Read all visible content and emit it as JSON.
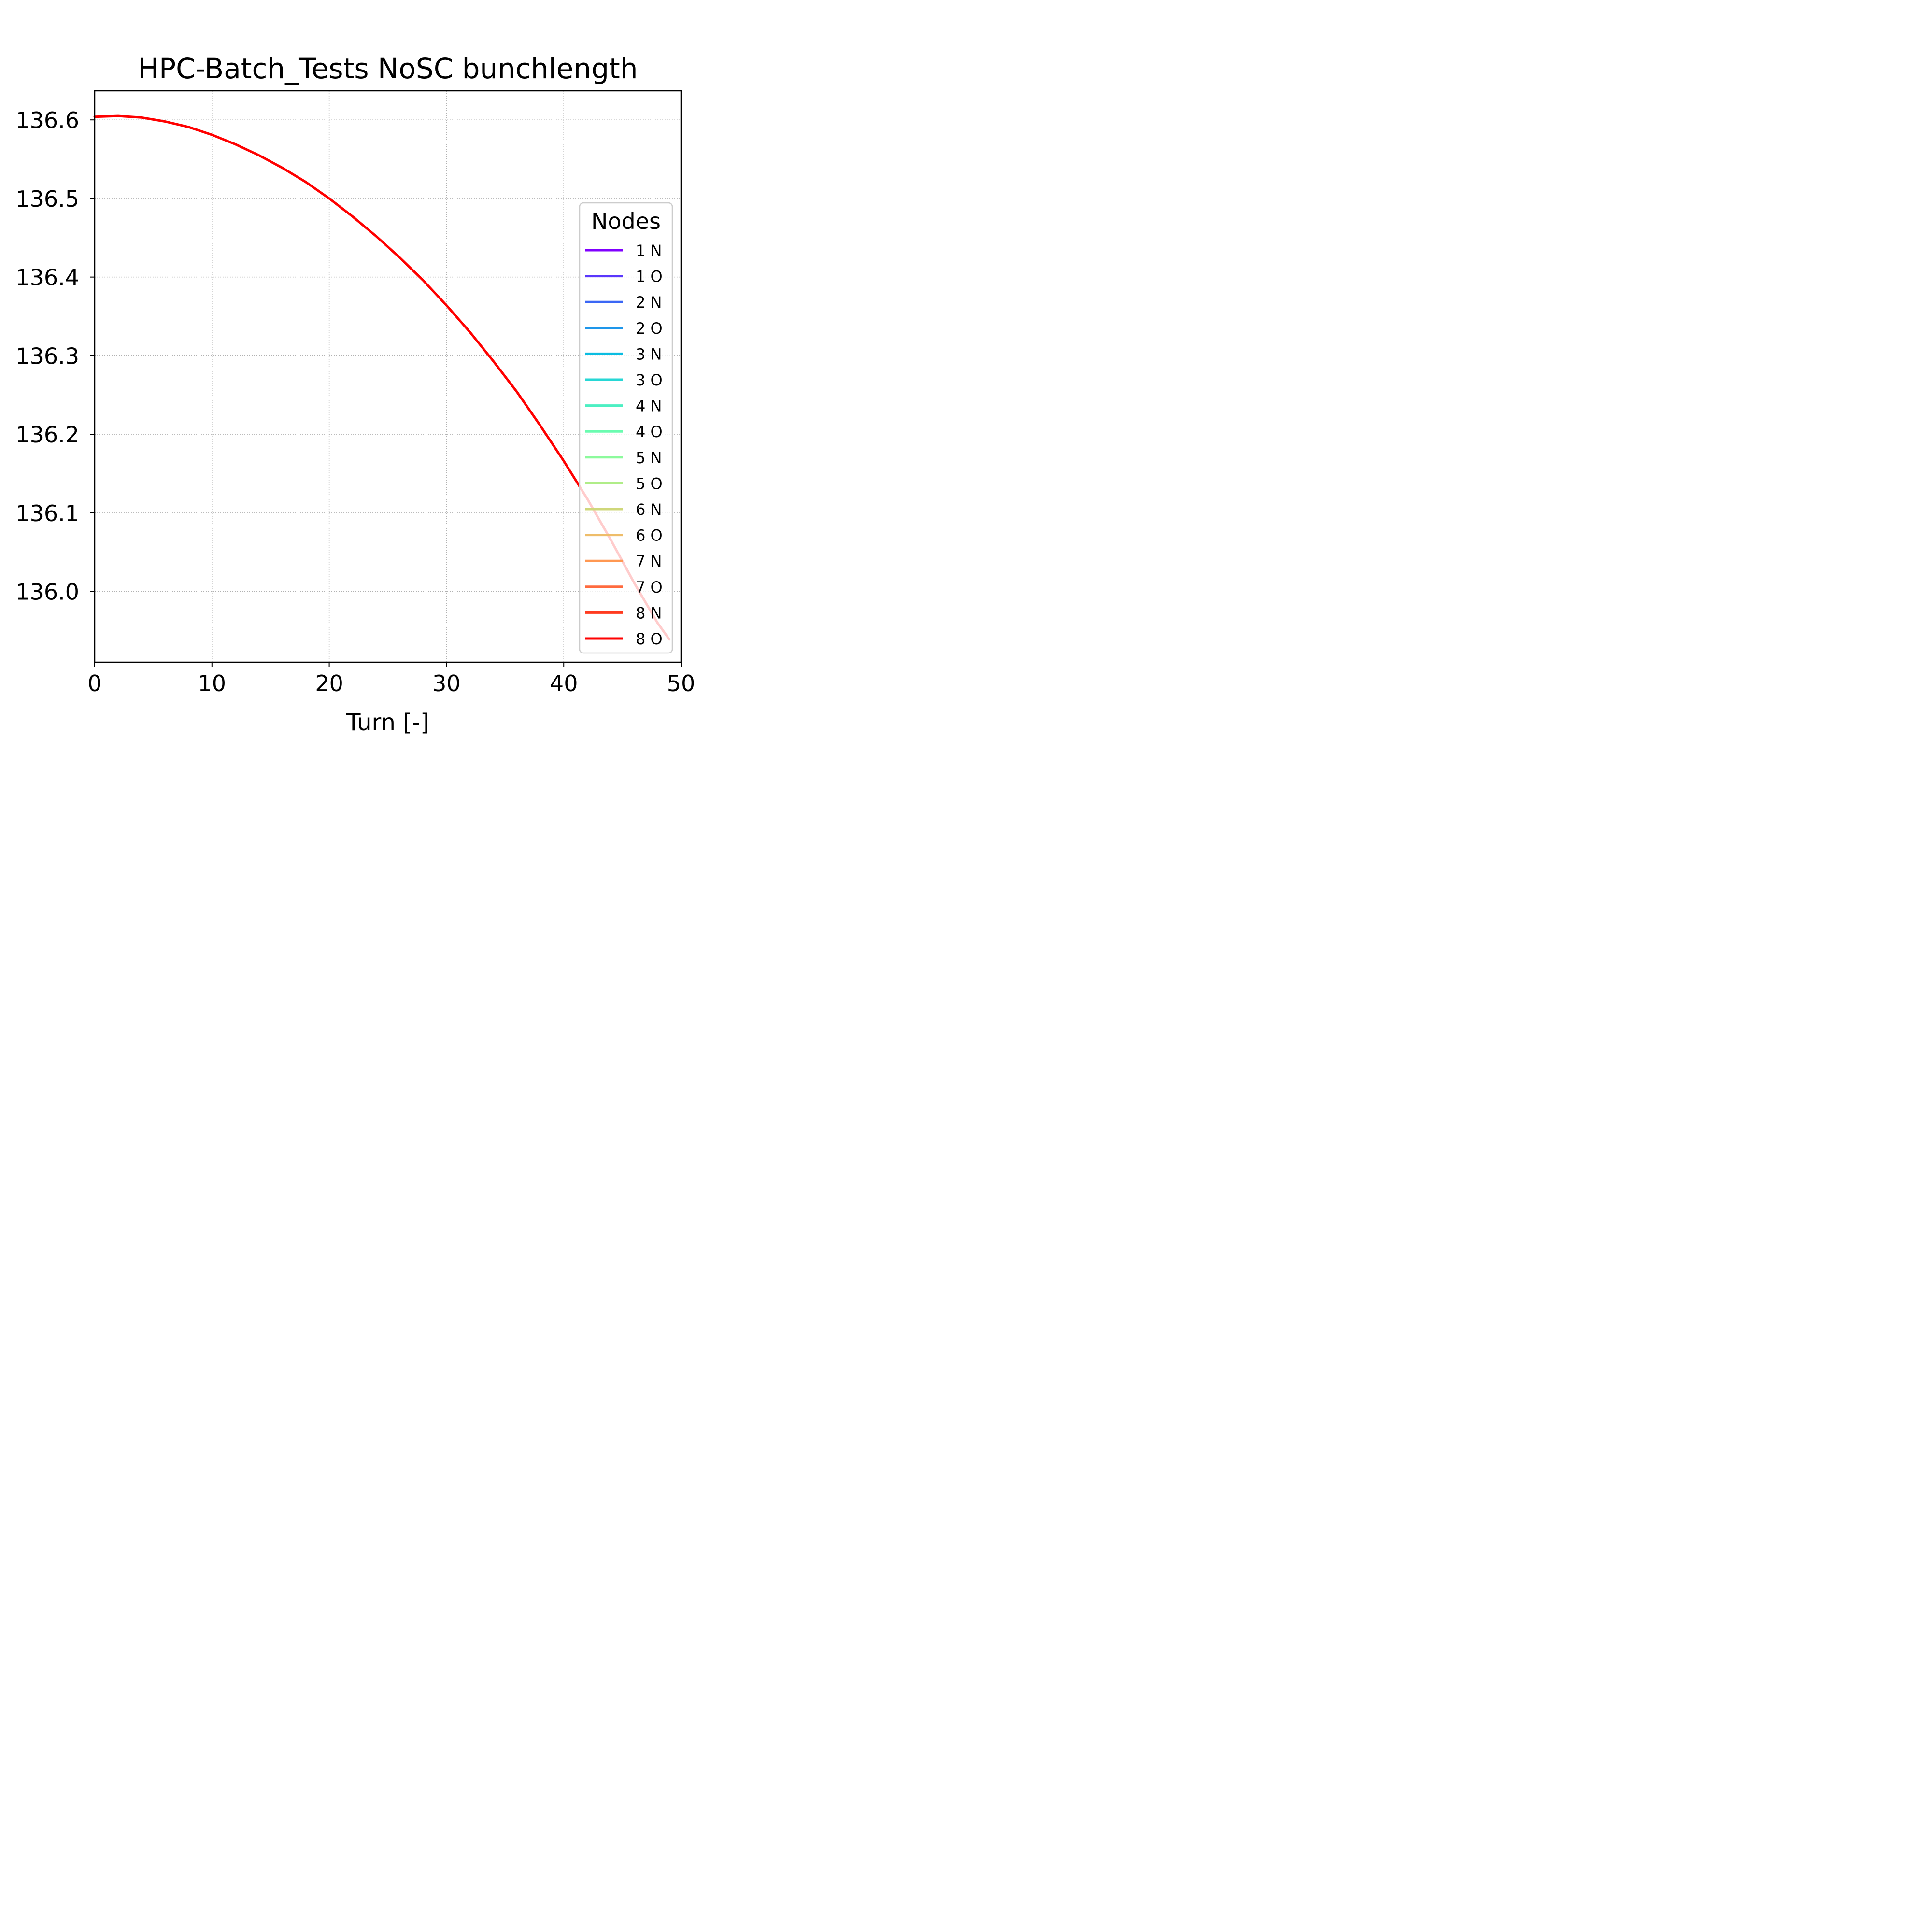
{
  "chart_data": {
    "type": "line",
    "title": "HPC-Batch_Tests NoSC bunchlength",
    "xlabel": "Turn [-]",
    "ylabel": "",
    "xlim": [
      0,
      50
    ],
    "ylim": [
      135.91,
      136.637
    ],
    "xticks": [
      0,
      10,
      20,
      30,
      40,
      50
    ],
    "xtick_labels": [
      "0",
      "10",
      "20",
      "30",
      "40",
      "50"
    ],
    "yticks": [
      136.0,
      136.1,
      136.2,
      136.3,
      136.4,
      136.5,
      136.6
    ],
    "ytick_labels": [
      "136.0",
      "136.1",
      "136.2",
      "136.3",
      "136.4",
      "136.5",
      "136.6"
    ],
    "grid": true,
    "legend": {
      "title": "Nodes",
      "placement": "right",
      "entries": [
        "1 N",
        "1 O",
        "2 N",
        "2 O",
        "3 N",
        "3 O",
        "4 N",
        "4 O",
        "5 N",
        "5 O",
        "6 N",
        "6 O",
        "7 N",
        "7 O",
        "8 N",
        "8 O"
      ]
    },
    "series": [
      {
        "name": "8 O",
        "color": "#ff0000",
        "x": [
          0,
          2,
          4,
          6,
          8,
          10,
          12,
          14,
          16,
          18,
          20,
          22,
          24,
          26,
          28,
          30,
          32,
          34,
          36,
          38,
          40,
          42,
          44,
          46,
          48,
          49
        ],
        "y": [
          136.604,
          136.605,
          136.603,
          136.598,
          136.591,
          136.581,
          136.569,
          136.555,
          136.539,
          136.521,
          136.5,
          136.477,
          136.452,
          136.425,
          136.396,
          136.364,
          136.33,
          136.293,
          136.254,
          136.211,
          136.166,
          136.118,
          136.066,
          136.011,
          135.96,
          135.939
        ]
      }
    ],
    "legend_colors": [
      "#8000ff",
      "#5a37fc",
      "#3b67f5",
      "#1e96ea",
      "#0bbde1",
      "#27d7d5",
      "#4cefc2",
      "#6afcb0",
      "#8cfa9c",
      "#b0ed88",
      "#cfd77a",
      "#eebd6a",
      "#ff9852",
      "#ff6a3e",
      "#ff3b20",
      "#ff0000"
    ]
  }
}
